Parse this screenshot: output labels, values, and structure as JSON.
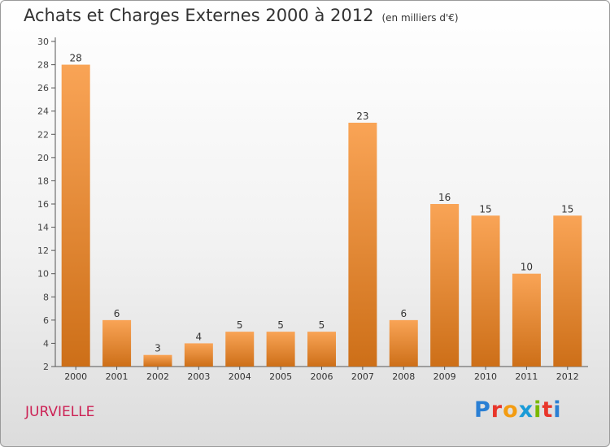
{
  "title": "Achats et Charges Externes 2000 à 2012",
  "unit": "(en milliers d'€)",
  "place": "JURVIELLE",
  "logo": {
    "text": "Proxiti",
    "colors": [
      "#2a7fd4",
      "#e8362b",
      "#f39c12",
      "#1a9bd7",
      "#7ab800",
      "#e8362b",
      "#2a7fd4"
    ]
  },
  "colors": {
    "bar_light": "#f9a456",
    "bar_dark": "#cd6f18",
    "axis": "#555555",
    "grid": "#999999"
  },
  "chart_data": {
    "type": "bar",
    "categories": [
      "2000",
      "2001",
      "2002",
      "2003",
      "2004",
      "2005",
      "2006",
      "2007",
      "2008",
      "2009",
      "2010",
      "2011",
      "2012"
    ],
    "values": [
      28,
      6,
      3,
      4,
      5,
      5,
      5,
      23,
      6,
      16,
      15,
      10,
      15
    ],
    "title": "Achats et Charges Externes 2000 à 2012",
    "subtitle": "(en milliers d'€)",
    "xlabel": "",
    "ylabel": "",
    "ylim": [
      2,
      30
    ],
    "yticks": [
      2,
      4,
      6,
      8,
      10,
      12,
      14,
      16,
      18,
      20,
      22,
      24,
      26,
      28,
      30
    ],
    "grid": false,
    "legend": "none",
    "data_labels": true
  }
}
